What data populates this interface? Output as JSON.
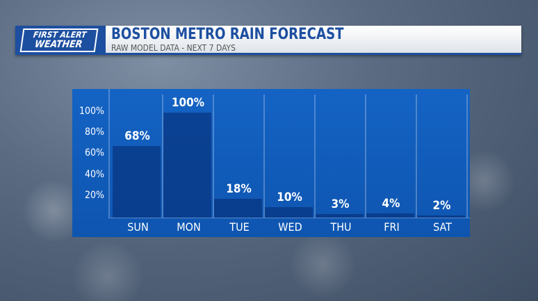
{
  "logo": {
    "line1": "FIRST ALERT",
    "line2": "WEATHER"
  },
  "header": {
    "title": "BOSTON METRO RAIN FORECAST",
    "subtitle": "RAW MODEL DATA - NEXT 7 DAYS"
  },
  "colors": {
    "brand": "#1d4fa0",
    "panel": "#1463c4"
  },
  "chart_data": {
    "type": "bar",
    "categories": [
      "SUN",
      "MON",
      "TUE",
      "WED",
      "THU",
      "FRI",
      "SAT"
    ],
    "values": [
      68,
      100,
      18,
      10,
      3,
      4,
      2
    ],
    "value_labels": [
      "68%",
      "100%",
      "18%",
      "10%",
      "3%",
      "4%",
      "2%"
    ],
    "yticks": [
      "20%",
      "40%",
      "60%",
      "80%",
      "100%"
    ],
    "ylim": [
      0,
      100
    ],
    "grid": false
  }
}
